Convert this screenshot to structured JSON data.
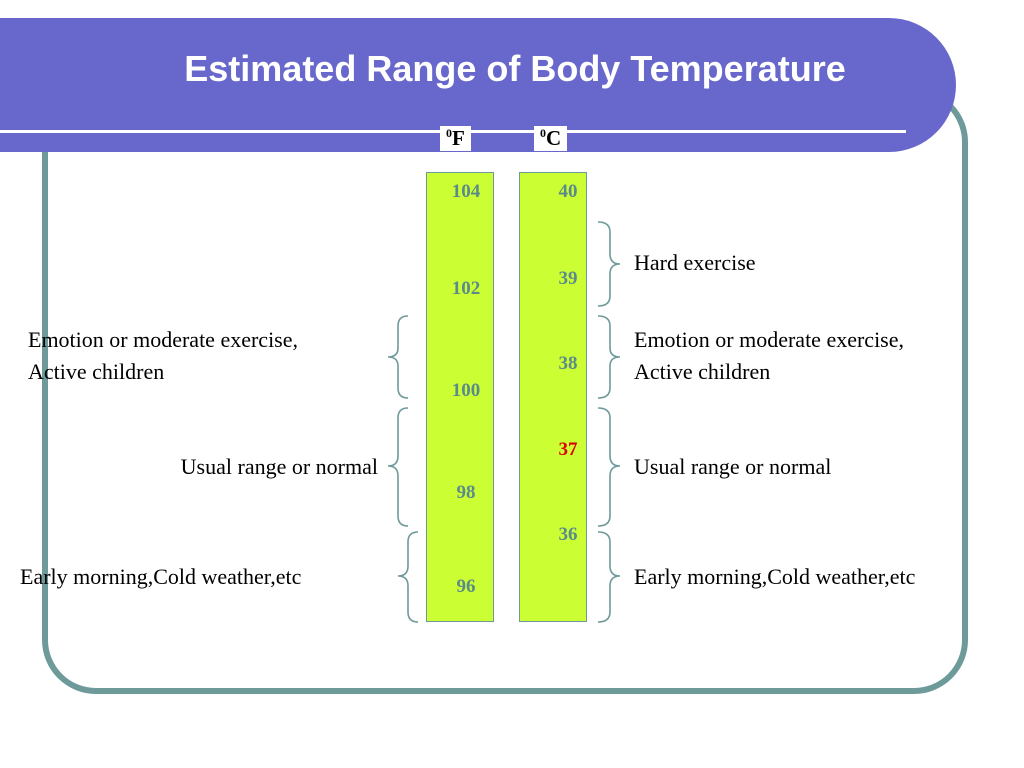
{
  "title": "Estimated Range of Body Temperature",
  "units": {
    "fahrenheit": {
      "sup": "0",
      "letter": "F"
    },
    "celsius": {
      "sup": "0",
      "letter": "C"
    }
  },
  "fahrenheit_ticks": [
    "104",
    "102",
    "100",
    "98",
    "96"
  ],
  "celsius_ticks": [
    "40",
    "39",
    "38",
    "37",
    "36"
  ],
  "normal_celsius": "37",
  "left_labels": {
    "emotion_line1": "Emotion or moderate exercise,",
    "emotion_line2": "Active children",
    "usual": "Usual range or normal",
    "early": "Early morning,Cold weather,etc"
  },
  "right_labels": {
    "hard": "Hard exercise",
    "emotion_line1": "Emotion or moderate exercise,",
    "emotion_line2": "Active children",
    "usual": "Usual range or normal",
    "early": "Early morning,Cold weather,etc"
  },
  "colors": {
    "banner": "#6868cc",
    "frame": "#6e9a9a",
    "bar": "#ccff33",
    "tick": "#5a8a8a",
    "normal": "#dd0000"
  }
}
